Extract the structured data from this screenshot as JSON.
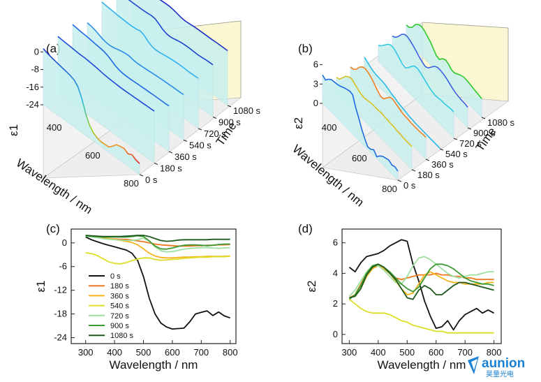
{
  "panels": {
    "a": {
      "label": "(a)",
      "zlabel": "ε1",
      "xlabel": "Wavelength / nm",
      "ylabel": "Time",
      "zticks": [
        0,
        -8,
        -16,
        -24
      ],
      "xticks": [
        400,
        600,
        800
      ],
      "timeticks": [
        "0 s",
        "180 s",
        "360 s",
        "540 s",
        "720 s",
        "900 s",
        "1080 s"
      ]
    },
    "b": {
      "label": "(b)",
      "zlabel": "ε2",
      "xlabel": "Wavelength / nm",
      "ylabel": "Time",
      "zticks": [
        6,
        3,
        0
      ],
      "xticks": [
        400,
        600,
        800
      ],
      "timeticks": [
        "0 s",
        "180 s",
        "360 s",
        "540 s",
        "720 s",
        "900 s",
        "1080 s"
      ]
    },
    "c": {
      "label": "(c)"
    },
    "d": {
      "label": "(d)"
    }
  },
  "chart_data": [
    {
      "type": "line",
      "panel": "c",
      "xlabel": "Wavelength / nm",
      "ylabel": "ε1",
      "xlim": [
        250,
        820
      ],
      "ylim": [
        -25.5,
        3.5
      ],
      "xticks": [
        300,
        400,
        500,
        600,
        700,
        800
      ],
      "yticks": [
        0,
        -6,
        -12,
        -18,
        -24
      ],
      "legend_placement": "center-left",
      "x": [
        300,
        320,
        340,
        360,
        380,
        400,
        420,
        440,
        460,
        480,
        500,
        520,
        540,
        560,
        580,
        600,
        620,
        640,
        660,
        680,
        700,
        720,
        740,
        760,
        780,
        800
      ],
      "series": [
        {
          "name": "0 s",
          "color": "#111111",
          "values": [
            1.5,
            0.8,
            0.3,
            -0.2,
            -0.6,
            -1.0,
            -1.4,
            -1.8,
            -2.6,
            -4.5,
            -8.5,
            -14.0,
            -18.0,
            -20.3,
            -21.3,
            -21.8,
            -21.7,
            -21.6,
            -20.0,
            -18.0,
            -17.6,
            -17.2,
            -18.4,
            -17.5,
            -18.5,
            -19.0
          ]
        },
        {
          "name": "180 s",
          "color": "#f07820",
          "values": [
            1.8,
            1.6,
            1.4,
            1.3,
            1.1,
            1.0,
            0.9,
            0.9,
            0.7,
            0.5,
            0.3,
            0.0,
            -0.3,
            -0.5,
            -0.6,
            -0.7,
            -0.8,
            -0.8,
            -0.8,
            -0.7,
            -0.7,
            -0.6,
            -0.6,
            -0.5,
            -0.5,
            -0.4
          ]
        },
        {
          "name": "360 s",
          "color": "#f4b41a",
          "values": [
            1.9,
            1.7,
            1.5,
            1.3,
            1.1,
            0.9,
            0.6,
            0.4,
            0.1,
            -0.5,
            -1.5,
            -2.6,
            -3.3,
            -3.7,
            -3.8,
            -3.8,
            -3.7,
            -3.6,
            -3.6,
            -3.5,
            -3.5,
            -3.4,
            -3.4,
            -3.4,
            -3.4,
            -3.3
          ]
        },
        {
          "name": "540 s",
          "color": "#dede28",
          "values": [
            -2.5,
            -2.7,
            -3.2,
            -4.0,
            -4.8,
            -5.2,
            -5.3,
            -5.0,
            -4.5,
            -4.1,
            -3.8,
            -3.8,
            -4.2,
            -4.4,
            -4.3,
            -4.2,
            -4.1,
            -3.9,
            -3.8,
            -3.7,
            -3.6,
            -3.6,
            -3.5,
            -3.5,
            -3.5,
            -3.4
          ]
        },
        {
          "name": "720 s",
          "color": "#9fe0a0",
          "values": [
            1.7,
            1.5,
            1.3,
            1.1,
            0.9,
            0.8,
            0.7,
            0.6,
            0.6,
            0.8,
            1.2,
            0.5,
            -1.0,
            -2.0,
            -2.3,
            -2.2,
            -1.9,
            -1.6,
            -1.4,
            -1.3,
            -1.2,
            -1.2,
            -1.3,
            -1.4,
            -1.3,
            -1.2
          ]
        },
        {
          "name": "900 s",
          "color": "#3c9a32",
          "values": [
            1.8,
            1.7,
            1.6,
            1.5,
            1.5,
            1.5,
            1.5,
            1.5,
            1.6,
            1.8,
            1.6,
            0.5,
            -0.8,
            -1.5,
            -1.6,
            -1.3,
            -0.9,
            -0.6,
            -0.5,
            -0.5,
            -0.6,
            -0.7,
            -0.6,
            -0.4,
            -0.3,
            -0.3
          ]
        },
        {
          "name": "1080 s",
          "color": "#1e5a1e",
          "values": [
            1.9,
            1.8,
            1.7,
            1.6,
            1.6,
            1.6,
            1.6,
            1.7,
            1.8,
            1.9,
            1.9,
            1.6,
            1.1,
            0.6,
            0.4,
            0.5,
            0.7,
            0.8,
            0.8,
            0.8,
            0.8,
            0.8,
            0.9,
            0.9,
            0.9,
            0.9
          ]
        }
      ]
    },
    {
      "type": "line",
      "panel": "d",
      "xlabel": "Wavelength / nm",
      "ylabel": "ε2",
      "xlim": [
        275,
        825
      ],
      "ylim": [
        -0.6,
        6.9
      ],
      "xticks": [
        300,
        400,
        500,
        600,
        700,
        800
      ],
      "yticks": [
        0,
        2,
        4,
        6
      ],
      "x": [
        300,
        320,
        340,
        360,
        380,
        400,
        420,
        440,
        460,
        480,
        500,
        520,
        540,
        560,
        580,
        600,
        620,
        640,
        660,
        680,
        700,
        720,
        740,
        760,
        780,
        800
      ],
      "series": [
        {
          "name": "0 s",
          "color": "#111111",
          "values": [
            4.4,
            4.1,
            4.7,
            5.1,
            5.2,
            5.3,
            5.5,
            5.8,
            6.0,
            6.2,
            6.1,
            4.6,
            3.5,
            2.2,
            1.2,
            0.4,
            0.5,
            0.9,
            0.3,
            0.9,
            1.3,
            1.5,
            1.7,
            1.4,
            1.6,
            1.4
          ]
        },
        {
          "name": "180 s",
          "color": "#f07820",
          "values": [
            2.4,
            2.6,
            3.3,
            4.0,
            4.4,
            4.6,
            4.3,
            4.0,
            3.7,
            3.6,
            3.7,
            3.8,
            3.9,
            3.9,
            3.9,
            4.0,
            3.9,
            3.9,
            3.8,
            3.8,
            3.7,
            3.7,
            3.6,
            3.6,
            3.6,
            3.6
          ]
        },
        {
          "name": "360 s",
          "color": "#f4b41a",
          "values": [
            2.4,
            2.5,
            3.0,
            3.8,
            4.3,
            4.5,
            4.3,
            4.0,
            3.5,
            3.0,
            2.6,
            2.7,
            3.3,
            3.9,
            4.1,
            3.9,
            3.7,
            3.5,
            3.4,
            3.4,
            3.3,
            3.3,
            3.3,
            3.3,
            3.4,
            3.4
          ]
        },
        {
          "name": "540 s",
          "color": "#dede28",
          "values": [
            2.3,
            2.0,
            1.7,
            1.5,
            1.4,
            1.4,
            1.4,
            1.3,
            1.1,
            0.9,
            0.8,
            0.6,
            0.5,
            0.4,
            0.3,
            0.2,
            0.2,
            0.1,
            0.1,
            0.1,
            0.1,
            0.1,
            0.1,
            0.1,
            0.1,
            0.1
          ]
        },
        {
          "name": "720 s",
          "color": "#9fe0a0",
          "values": [
            2.5,
            2.9,
            3.5,
            4.1,
            4.5,
            4.5,
            4.2,
            3.8,
            3.4,
            3.3,
            3.8,
            4.5,
            5.0,
            5.1,
            4.9,
            4.6,
            4.3,
            4.0,
            3.8,
            3.7,
            3.8,
            3.9,
            3.9,
            4.0,
            4.1,
            4.1
          ]
        },
        {
          "name": "900 s",
          "color": "#3c9a32",
          "values": [
            2.3,
            2.6,
            3.2,
            4.0,
            4.5,
            4.6,
            4.4,
            4.1,
            3.7,
            3.3,
            3.0,
            2.8,
            3.1,
            3.7,
            4.3,
            4.6,
            4.6,
            4.5,
            4.3,
            4.0,
            3.7,
            3.5,
            3.4,
            3.3,
            3.3,
            3.2
          ]
        },
        {
          "name": "1080 s",
          "color": "#1e5a1e",
          "values": [
            2.4,
            2.5,
            3.0,
            3.9,
            4.4,
            4.6,
            4.4,
            4.0,
            3.6,
            3.0,
            2.4,
            2.3,
            2.9,
            3.2,
            3.0,
            2.6,
            2.6,
            2.9,
            3.2,
            3.4,
            3.4,
            3.3,
            3.2,
            3.1,
            3.0,
            2.9
          ]
        }
      ]
    }
  ],
  "logo": {
    "text": "aunion",
    "subtext": "昊量光电",
    "color": "#1e82d2"
  }
}
